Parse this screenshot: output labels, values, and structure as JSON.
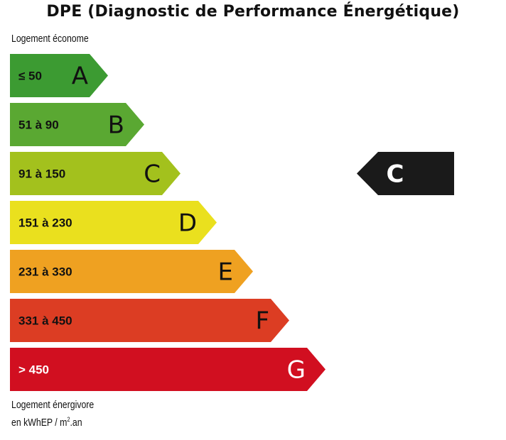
{
  "title": "DPE (Diagnostic de Performance Énergétique)",
  "top_note": "Logement économe",
  "bottom_note": {
    "line1": "Logement énergivore",
    "unit_prefix": "en kWhEP / m",
    "unit_sup": "2",
    "unit_suffix": ".an"
  },
  "chart_data": {
    "type": "bar",
    "bands": [
      {
        "letter": "A",
        "range": "≤ 50",
        "color": "#3c9b32",
        "text_color": "#111111"
      },
      {
        "letter": "B",
        "range": "51 à 90",
        "color": "#5aa832",
        "text_color": "#111111"
      },
      {
        "letter": "C",
        "range": "91 à 150",
        "color": "#a3c11d",
        "text_color": "#111111"
      },
      {
        "letter": "D",
        "range": "151 à 230",
        "color": "#eae01e",
        "text_color": "#111111"
      },
      {
        "letter": "E",
        "range": "231 à 330",
        "color": "#efa121",
        "text_color": "#111111"
      },
      {
        "letter": "F",
        "range": "331 à 450",
        "color": "#dc3d23",
        "text_color": "#111111"
      },
      {
        "letter": "G",
        "range": "> 450",
        "color": "#d10f20",
        "text_color": "#ffffff"
      }
    ],
    "current_rating": "C",
    "pointer_color": "#1a1a1a",
    "pointer_text_color": "#ffffff"
  }
}
